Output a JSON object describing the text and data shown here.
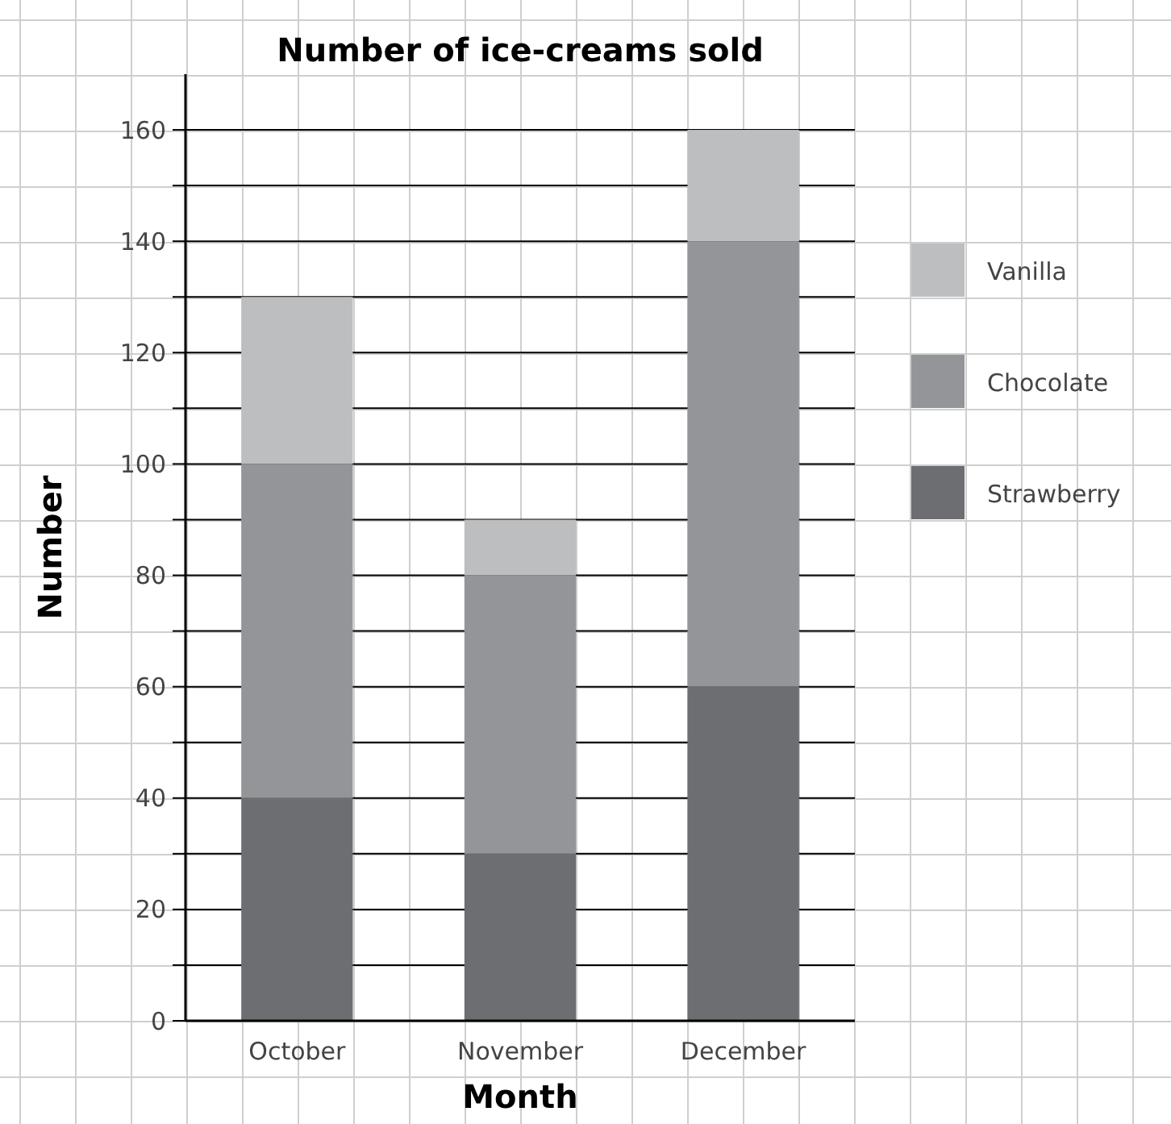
{
  "chart_data": {
    "type": "bar",
    "title": "Number of ice-creams sold",
    "xlabel": "Month",
    "ylabel": "Number",
    "categories": [
      "October",
      "November",
      "December"
    ],
    "stacked": true,
    "series": [
      {
        "name": "Strawberry",
        "color": "#6d6e71",
        "values": [
          40,
          30,
          60
        ]
      },
      {
        "name": "Chocolate",
        "color": "#939598",
        "values": [
          60,
          50,
          80
        ]
      },
      {
        "name": "Vanilla",
        "color": "#bcbec0",
        "values": [
          30,
          10,
          20
        ]
      }
    ],
    "ylim": [
      0,
      170
    ],
    "yticks": [
      0,
      {
        "value": 10,
        "label": null
      },
      20,
      {
        "value": 30,
        "label": null
      },
      40,
      {
        "value": 50,
        "label": null
      },
      60,
      {
        "value": 70,
        "label": null
      },
      80,
      {
        "value": 90,
        "label": null
      },
      100,
      {
        "value": 110,
        "label": null
      },
      120,
      {
        "value": 130,
        "label": null
      },
      140,
      {
        "value": 150,
        "label": null
      },
      160
    ],
    "grid": "y",
    "legend": "right"
  }
}
